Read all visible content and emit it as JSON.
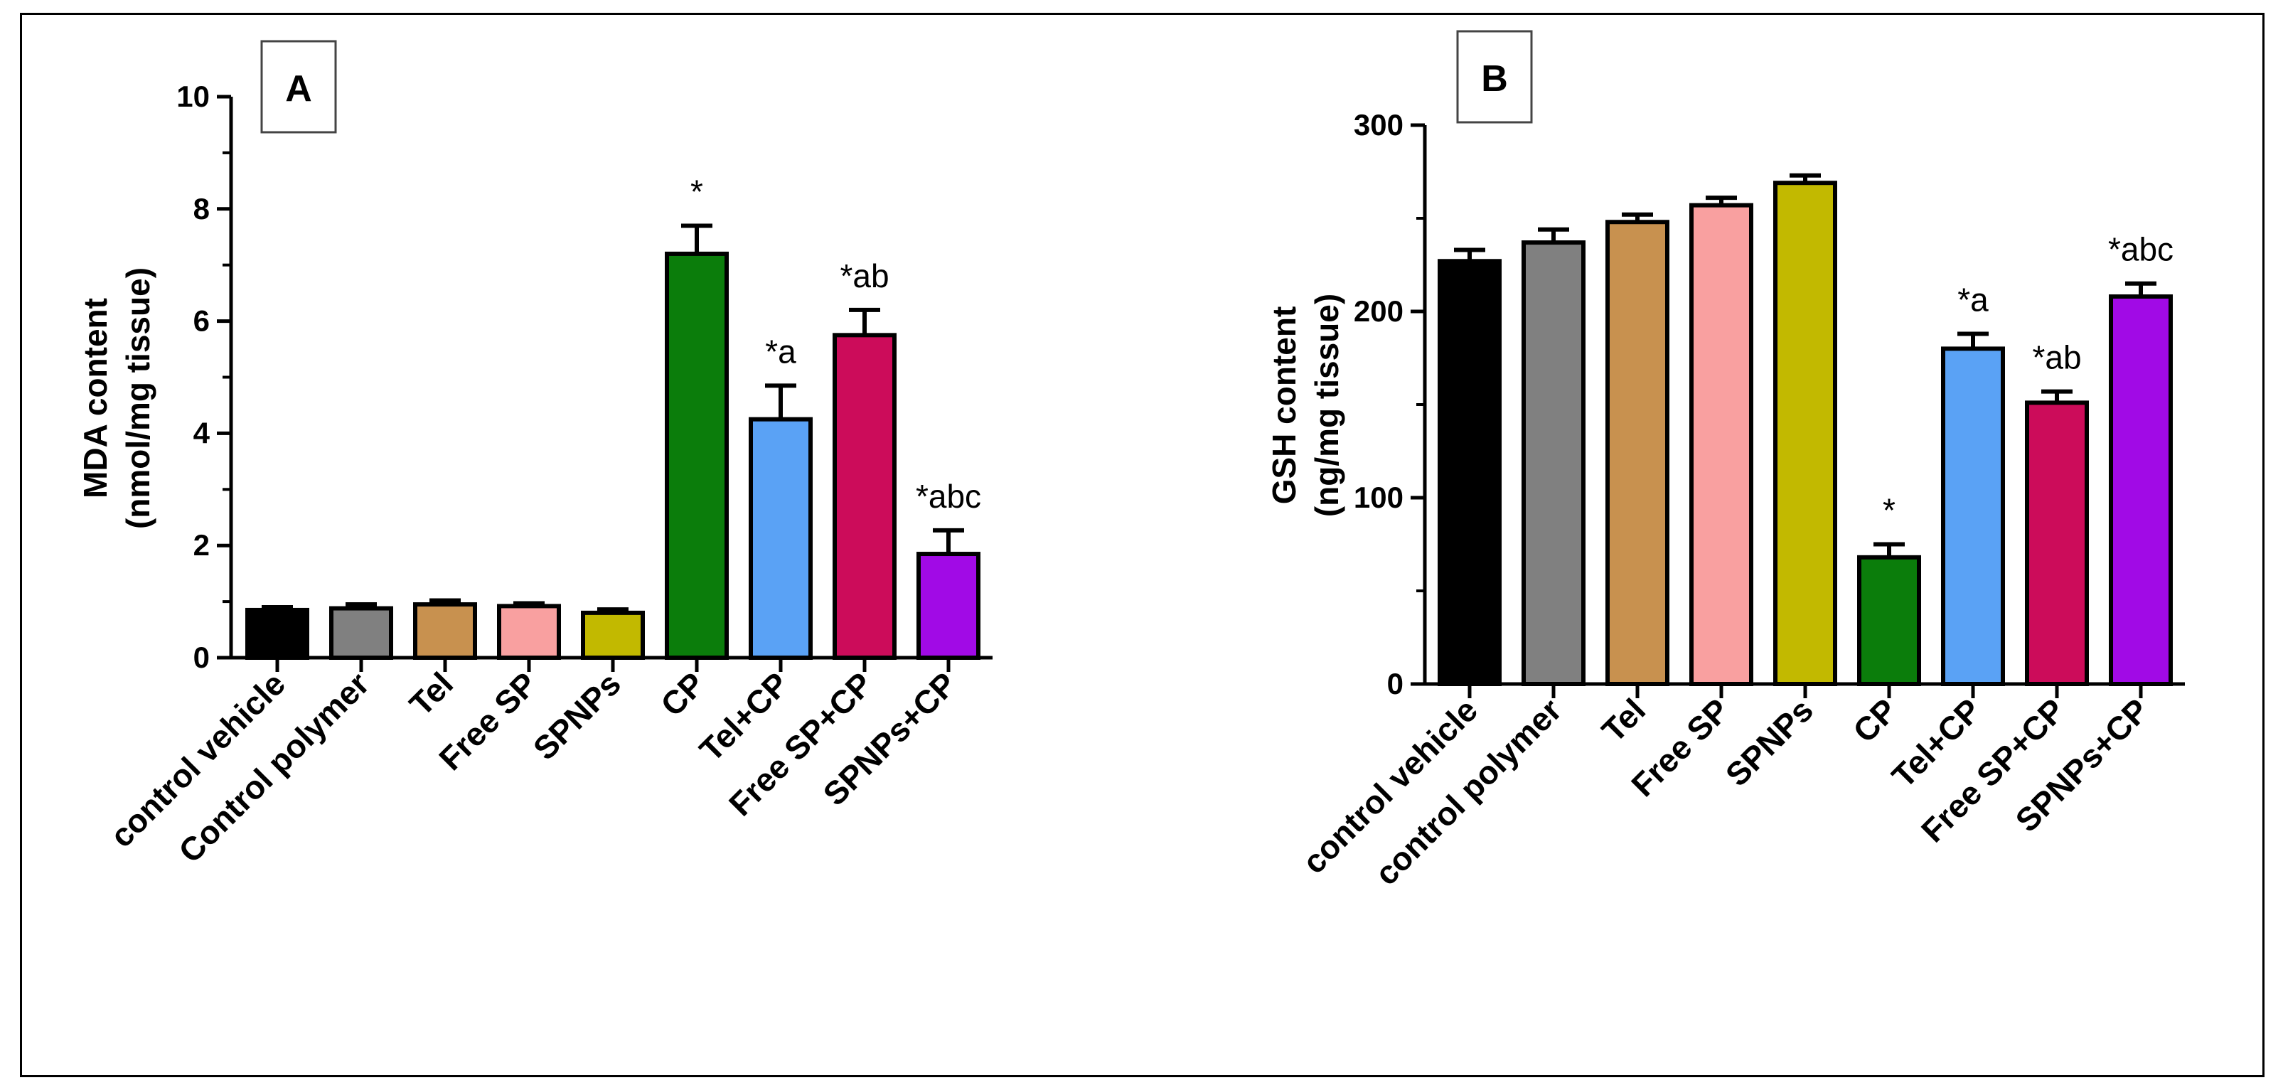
{
  "chart_data": [
    {
      "type": "bar",
      "panel_label": "A",
      "ylabel_line1": "MDA content",
      "ylabel_line2": "(nmol/mg tissue)",
      "ylim": [
        0,
        10
      ],
      "yticks": [
        "0",
        "2",
        "4",
        "6",
        "8",
        "10"
      ],
      "categories": [
        "control vehicle",
        "Control polymer",
        "Tel",
        "Free SP",
        "SPNPs",
        "CP",
        "Tel+CP",
        "Free SP+CP",
        "SPNPs+CP"
      ],
      "values": [
        0.85,
        0.88,
        0.95,
        0.92,
        0.8,
        7.2,
        4.25,
        5.75,
        1.85
      ],
      "errors": [
        0.05,
        0.07,
        0.07,
        0.05,
        0.06,
        0.5,
        0.6,
        0.45,
        0.42
      ],
      "annotations": [
        "",
        "",
        "",
        "",
        "",
        "*",
        "*a",
        "*ab",
        "*abc"
      ],
      "colors": [
        "#000000",
        "#808080",
        "#c8914f",
        "#f9a0a0",
        "#c2b900",
        "#0b7d0b",
        "#5aa2f5",
        "#cc0c5a",
        "#a10ae6"
      ]
    },
    {
      "type": "bar",
      "panel_label": "B",
      "ylabel_line1": "GSH content",
      "ylabel_line2": "(ng/mg tissue)",
      "ylim": [
        0,
        300
      ],
      "yticks": [
        "0",
        "100",
        "200",
        "300"
      ],
      "categories": [
        "control vehicle",
        "control polymer",
        "Tel",
        "Free SP",
        "SPNPs",
        "CP",
        "Tel+CP",
        "Free SP+CP",
        "SPNPs+CP"
      ],
      "values": [
        227,
        237,
        248,
        257,
        269,
        68,
        180,
        151,
        208
      ],
      "errors": [
        6,
        7,
        4,
        4,
        4,
        7,
        8,
        6,
        7
      ],
      "annotations": [
        "",
        "",
        "",
        "",
        "",
        "*",
        "*a",
        "*ab",
        "*abc"
      ],
      "colors": [
        "#000000",
        "#808080",
        "#c8914f",
        "#f9a0a0",
        "#c2b900",
        "#0b7d0b",
        "#5aa2f5",
        "#cc0c5a",
        "#a10ae6"
      ]
    }
  ]
}
